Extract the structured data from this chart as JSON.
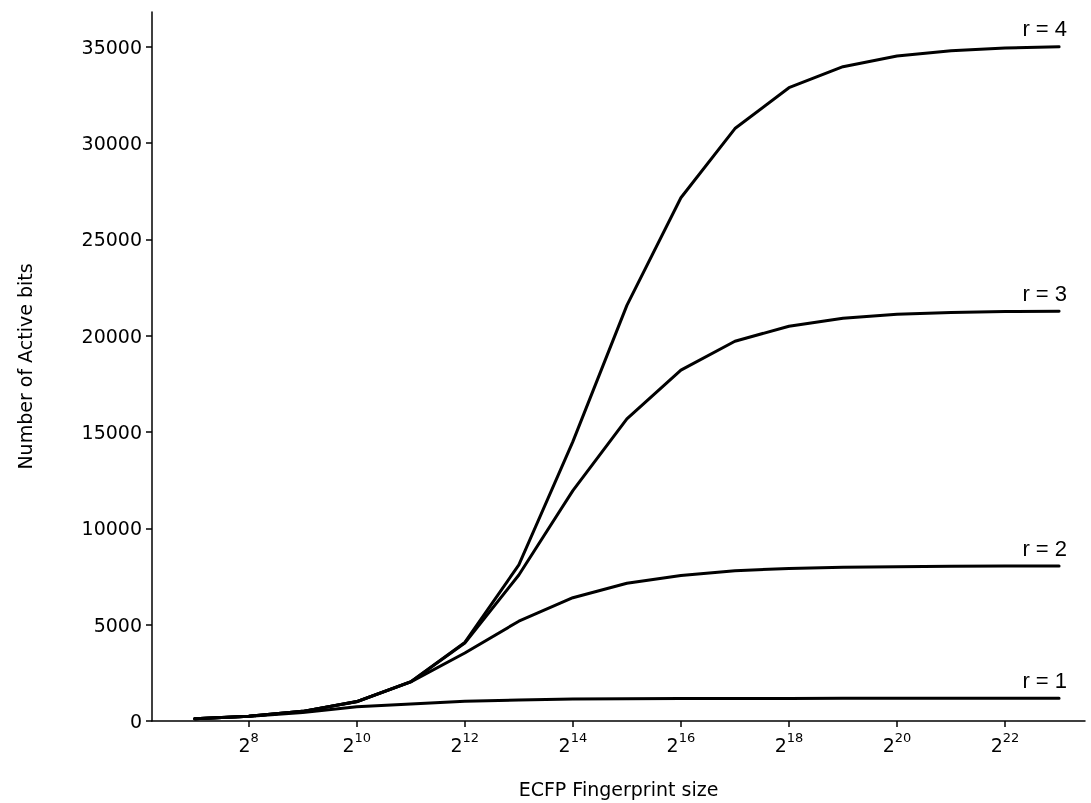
{
  "chart_data": {
    "type": "line",
    "xlabel": "ECFP Fingerprint size",
    "ylabel": "Number of Active bits",
    "x": [
      128,
      256,
      512,
      1024,
      2048,
      4096,
      8192,
      16384,
      32768,
      65536,
      131072,
      262144,
      524288,
      1048576,
      2097152,
      4194304,
      8388608
    ],
    "series": [
      {
        "name": "r = 1",
        "color": "#000000",
        "values": [
          120,
          240,
          440,
          740,
          880,
          1020,
          1090,
          1140,
          1160,
          1170,
          1170,
          1170,
          1180,
          1180,
          1180,
          1180,
          1180
        ]
      },
      {
        "name": "r = 2",
        "color": "#000000",
        "values": [
          120,
          250,
          500,
          1000,
          2030,
          3530,
          5180,
          6400,
          7150,
          7550,
          7800,
          7920,
          7980,
          8010,
          8030,
          8040,
          8040
        ]
      },
      {
        "name": "r = 3",
        "color": "#000000",
        "values": [
          120,
          250,
          500,
          1010,
          2030,
          4050,
          7580,
          11960,
          15680,
          18210,
          19710,
          20490,
          20900,
          21110,
          21200,
          21250,
          21270
        ]
      },
      {
        "name": "r = 4",
        "color": "#000000",
        "values": [
          120,
          250,
          500,
          1010,
          2040,
          4080,
          8100,
          14500,
          21570,
          27160,
          30750,
          32870,
          33960,
          34520,
          34790,
          34930,
          34990
        ]
      }
    ],
    "xlim": [
      74,
      11700000
    ],
    "ylim": [
      0,
      36800
    ],
    "xticks": [
      {
        "value": 256,
        "label": "2$^{8}$"
      },
      {
        "value": 1024,
        "label": "2$^{10}$"
      },
      {
        "value": 4096,
        "label": "2$^{12}$"
      },
      {
        "value": 16384,
        "label": "2$^{14}$"
      },
      {
        "value": 65536,
        "label": "2$^{16}$"
      },
      {
        "value": 262144,
        "label": "2$^{18}$"
      },
      {
        "value": 1048576,
        "label": "2$^{20}$"
      },
      {
        "value": 4194304,
        "label": "2$^{22}$"
      }
    ],
    "yticks": [
      0,
      5000,
      10000,
      15000,
      20000,
      25000,
      30000,
      35000
    ],
    "log": "x",
    "grid": false,
    "legend": false,
    "marker": "none",
    "line_style": "solid"
  }
}
